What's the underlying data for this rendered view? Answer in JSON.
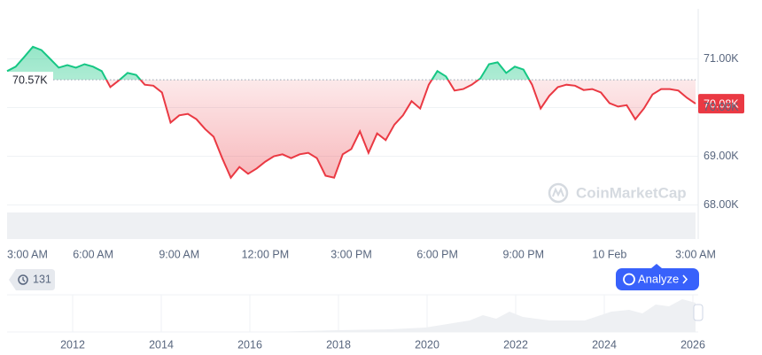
{
  "chart_data": {
    "type": "line",
    "x": [
      0,
      0.3,
      0.6,
      0.9,
      1.2,
      1.5,
      1.8,
      2.1,
      2.4,
      2.7,
      3,
      3.3,
      3.6,
      3.9,
      4.2,
      4.5,
      4.8,
      5.1,
      5.4,
      5.7,
      6,
      6.3,
      6.6,
      6.9,
      7.2,
      7.5,
      7.8,
      8.1,
      8.4,
      8.7,
      9,
      9.3,
      9.6,
      9.9,
      10.2,
      10.5,
      10.8,
      11.1,
      11.4,
      11.7,
      12,
      12.3,
      12.6,
      12.9,
      13.2,
      13.5,
      13.8,
      14.1,
      14.4,
      14.7,
      15,
      15.3,
      15.6,
      15.9,
      16.2,
      16.5,
      16.8,
      17.1,
      17.4,
      17.7,
      18,
      18.3,
      18.6,
      18.9,
      19.2,
      19.5,
      19.8,
      20.1,
      20.4,
      20.7,
      21,
      21.3,
      21.6,
      21.9,
      22.2,
      22.5,
      22.8,
      23.1,
      23.4,
      23.7,
      24
    ],
    "values": [
      70750,
      70840,
      71040,
      71250,
      71180,
      71000,
      70820,
      70870,
      70820,
      70890,
      70840,
      70750,
      70420,
      70560,
      70710,
      70670,
      70470,
      70450,
      70310,
      69690,
      69840,
      69870,
      69760,
      69560,
      69400,
      68960,
      68560,
      68780,
      68640,
      68750,
      68890,
      69000,
      69040,
      68960,
      69040,
      69070,
      68960,
      68600,
      68560,
      69040,
      69150,
      69510,
      69070,
      69470,
      69330,
      69650,
      69840,
      70130,
      69980,
      70470,
      70750,
      70640,
      70350,
      70380,
      70470,
      70600,
      70890,
      70930,
      70710,
      70840,
      70780,
      70470,
      69980,
      70240,
      70420,
      70470,
      70450,
      70360,
      70380,
      70310,
      70090,
      70020,
      70050,
      69760,
      69980,
      70270,
      70380,
      70380,
      70350,
      70200,
      70080
    ],
    "up_color": "#16c784",
    "down_color": "#ea3943",
    "baseline": {
      "value": 70570,
      "label": "70.57K"
    },
    "last_price": {
      "value": 70080,
      "label": "70.08K"
    },
    "xlim": [
      0,
      24
    ],
    "xticks": [
      {
        "value": 0,
        "label": "3:00 AM"
      },
      {
        "value": 3,
        "label": "6:00 AM"
      },
      {
        "value": 6,
        "label": "9:00 AM"
      },
      {
        "value": 9,
        "label": "12:00 PM"
      },
      {
        "value": 12,
        "label": "3:00 PM"
      },
      {
        "value": 15,
        "label": "6:00 PM"
      },
      {
        "value": 18,
        "label": "9:00 PM"
      },
      {
        "value": 21,
        "label": "10 Feb"
      },
      {
        "value": 24,
        "label": "3:00 AM"
      }
    ],
    "ylim": [
      67300,
      72000
    ],
    "yticks": [
      {
        "value": 68000,
        "label": "68.00K"
      },
      {
        "value": 69000,
        "label": "69.00K"
      },
      {
        "value": 70000,
        "label": "70.00K"
      },
      {
        "value": 71000,
        "label": "71.00K"
      }
    ],
    "grid": true,
    "overview": {
      "xlim": [
        2010.52,
        2026.06
      ],
      "xticks": [
        2012,
        2014,
        2016,
        2018,
        2020,
        2022,
        2024,
        2026
      ]
    }
  },
  "ui": {
    "watermark": "CoinMarketCap",
    "history_badge": "131",
    "analyze_button": "Analyze"
  }
}
